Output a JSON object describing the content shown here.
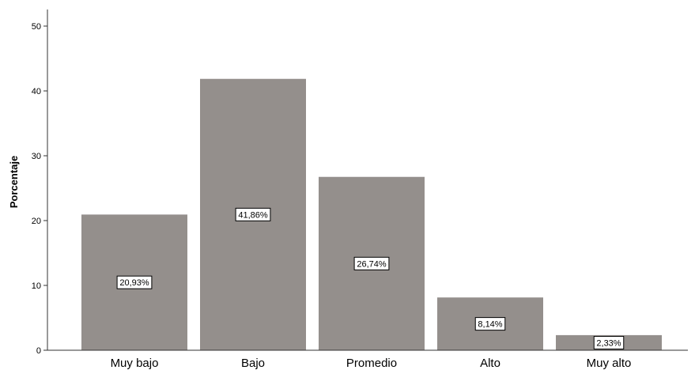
{
  "chart_data": {
    "type": "bar",
    "title": "",
    "xlabel": "",
    "ylabel": "Porcentaje",
    "categories": [
      "Muy bajo",
      "Bajo",
      "Promedio",
      "Alto",
      "Muy alto"
    ],
    "values": [
      20.93,
      41.86,
      26.74,
      8.14,
      2.33
    ],
    "data_labels": [
      "20,93%",
      "41,86%",
      "26,74%",
      "8,14%",
      "2,33%"
    ],
    "ylim": [
      0,
      50
    ],
    "yticks": [
      0,
      10,
      20,
      30,
      40,
      50
    ],
    "grid": false,
    "legend": "none",
    "colors": {
      "bar": "#948f8c",
      "axis": "#333333",
      "label_box_fill": "#ffffff",
      "label_box_stroke": "#000000"
    }
  }
}
